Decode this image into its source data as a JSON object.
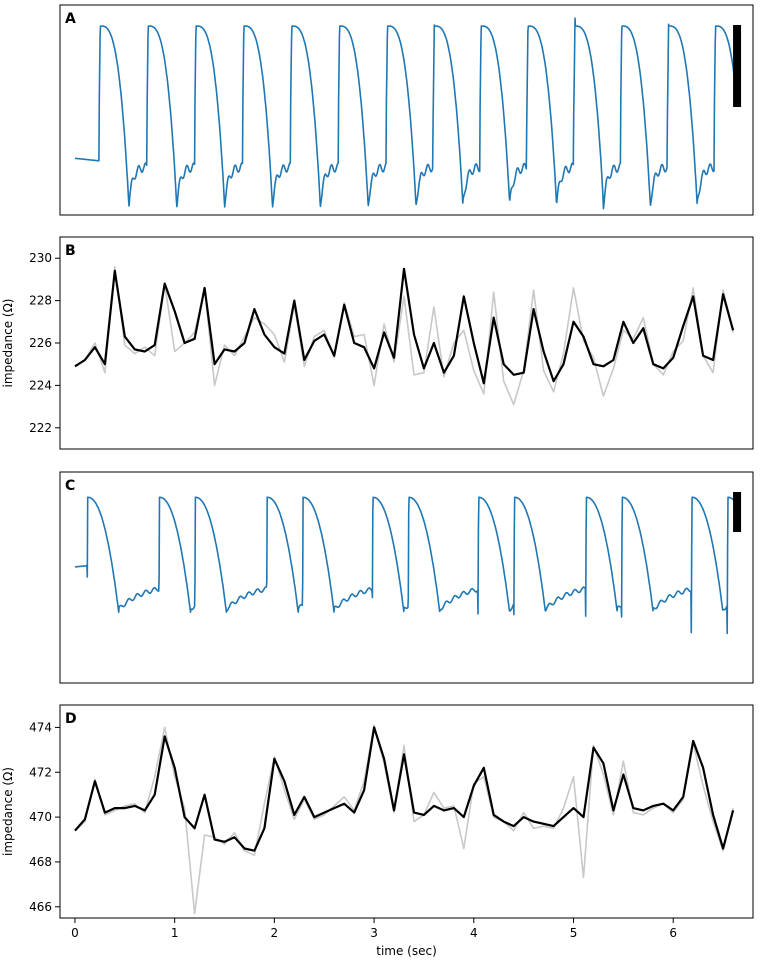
{
  "colors": {
    "blue": "#1f77b4",
    "black": "#000000",
    "gray": "#c8c8c8"
  },
  "shared_x": {
    "label": "time (sec)",
    "range": [
      -0.15,
      6.8
    ],
    "ticks": [
      0,
      1,
      2,
      3,
      4,
      5,
      6
    ]
  },
  "chart_data": [
    {
      "panel": "A",
      "type": "line",
      "ylim": [
        0,
        1
      ],
      "y_axis_visible": false,
      "series": [
        {
          "color": "blue",
          "kind": "action-potential",
          "beats": [
            0.24,
            0.72,
            1.2,
            1.68,
            2.16,
            2.64,
            3.12,
            3.59,
            4.06,
            4.53,
            5.0,
            5.47,
            5.94,
            6.41
          ],
          "notes": "optical action potential trace, arbitrary units"
        }
      ],
      "scale_bar": true
    },
    {
      "panel": "B",
      "type": "line",
      "ylabel": "impedance (Ω)",
      "ylim": [
        221.0,
        231.0
      ],
      "yticks": [
        222,
        224,
        226,
        228,
        230
      ],
      "series": [
        {
          "color": "gray",
          "role": "raw",
          "x": [
            0,
            0.1,
            0.2,
            0.3,
            0.4,
            0.5,
            0.6,
            0.7,
            0.8,
            0.9,
            1.0,
            1.1,
            1.2,
            1.3,
            1.4,
            1.5,
            1.6,
            1.7,
            1.8,
            1.9,
            2.0,
            2.1,
            2.2,
            2.3,
            2.4,
            2.5,
            2.6,
            2.7,
            2.8,
            2.9,
            3.0,
            3.1,
            3.2,
            3.3,
            3.4,
            3.5,
            3.6,
            3.7,
            3.8,
            3.9,
            4.0,
            4.1,
            4.2,
            4.3,
            4.4,
            4.5,
            4.6,
            4.7,
            4.8,
            4.9,
            5.0,
            5.1,
            5.2,
            5.3,
            5.4,
            5.5,
            5.6,
            5.7,
            5.8,
            5.9,
            6.0,
            6.1,
            6.2,
            6.3,
            6.4,
            6.5,
            6.6
          ],
          "y": [
            224.9,
            225.2,
            226.0,
            224.6,
            229.6,
            225.9,
            225.5,
            225.8,
            225.4,
            228.8,
            225.6,
            226.0,
            226.5,
            228.6,
            224.0,
            225.9,
            225.4,
            226.3,
            227.2,
            226.9,
            226.4,
            225.1,
            227.8,
            224.9,
            226.3,
            226.6,
            225.3,
            227.9,
            226.3,
            226.4,
            224.0,
            226.9,
            225.1,
            228.2,
            224.5,
            224.6,
            227.7,
            224.4,
            226.0,
            226.6,
            224.7,
            223.6,
            228.4,
            224.2,
            223.1,
            224.7,
            228.5,
            224.7,
            223.7,
            225.5,
            228.6,
            226.1,
            225.3,
            223.5,
            224.8,
            226.6,
            226.2,
            227.2,
            225.0,
            224.5,
            225.6,
            226.1,
            228.6,
            225.4,
            224.6,
            228.5,
            226.5
          ]
        },
        {
          "color": "black",
          "role": "filtered",
          "x": [
            0,
            0.1,
            0.2,
            0.3,
            0.4,
            0.5,
            0.6,
            0.7,
            0.8,
            0.9,
            1.0,
            1.1,
            1.2,
            1.3,
            1.4,
            1.5,
            1.6,
            1.7,
            1.8,
            1.9,
            2.0,
            2.1,
            2.2,
            2.3,
            2.4,
            2.5,
            2.6,
            2.7,
            2.8,
            2.9,
            3.0,
            3.1,
            3.2,
            3.3,
            3.4,
            3.5,
            3.6,
            3.7,
            3.8,
            3.9,
            4.0,
            4.1,
            4.2,
            4.3,
            4.4,
            4.5,
            4.6,
            4.7,
            4.8,
            4.9,
            5.0,
            5.1,
            5.2,
            5.3,
            5.4,
            5.5,
            5.6,
            5.7,
            5.8,
            5.9,
            6.0,
            6.1,
            6.2,
            6.3,
            6.4,
            6.5,
            6.6
          ],
          "y": [
            224.9,
            225.2,
            225.8,
            225.0,
            229.4,
            226.3,
            225.7,
            225.6,
            225.9,
            228.8,
            227.5,
            226.0,
            226.2,
            228.6,
            225.0,
            225.7,
            225.6,
            226.0,
            227.6,
            226.4,
            225.8,
            225.5,
            228.0,
            225.2,
            226.1,
            226.4,
            225.4,
            227.8,
            226.0,
            225.8,
            224.8,
            226.5,
            225.3,
            229.5,
            226.4,
            224.8,
            226.0,
            224.6,
            225.4,
            228.2,
            226.0,
            224.1,
            227.2,
            225.0,
            224.5,
            224.6,
            227.6,
            225.6,
            224.2,
            225.0,
            227.0,
            226.3,
            225.0,
            224.9,
            225.2,
            227.0,
            226.0,
            226.7,
            225.0,
            224.8,
            225.3,
            226.8,
            228.2,
            225.4,
            225.2,
            228.3,
            226.6
          ]
        }
      ]
    },
    {
      "panel": "C",
      "type": "line",
      "ylim": [
        0,
        1
      ],
      "y_axis_visible": false,
      "series": [
        {
          "color": "blue",
          "kind": "action-potential",
          "beats": [
            0.12,
            0.84,
            1.2,
            1.92,
            2.28,
            2.98,
            3.34,
            4.04,
            4.4,
            5.12,
            5.48,
            6.18,
            6.54
          ],
          "notes": "optical action potential trace, arbitrary units"
        }
      ],
      "scale_bar": true
    },
    {
      "panel": "D",
      "type": "line",
      "ylabel": "impedance (Ω)",
      "ylim": [
        465.5,
        475.0
      ],
      "yticks": [
        466,
        468,
        470,
        472,
        474
      ],
      "series": [
        {
          "color": "gray",
          "role": "raw",
          "x": [
            0,
            0.1,
            0.2,
            0.3,
            0.4,
            0.5,
            0.6,
            0.7,
            0.8,
            0.9,
            1.0,
            1.1,
            1.2,
            1.3,
            1.4,
            1.5,
            1.6,
            1.7,
            1.8,
            1.9,
            2.0,
            2.1,
            2.2,
            2.3,
            2.4,
            2.5,
            2.6,
            2.7,
            2.8,
            2.9,
            3.0,
            3.1,
            3.2,
            3.3,
            3.4,
            3.5,
            3.6,
            3.7,
            3.8,
            3.9,
            4.0,
            4.1,
            4.2,
            4.3,
            4.4,
            4.5,
            4.6,
            4.7,
            4.8,
            4.9,
            5.0,
            5.1,
            5.2,
            5.3,
            5.4,
            5.5,
            5.6,
            5.7,
            5.8,
            5.9,
            6.0,
            6.1,
            6.2,
            6.3,
            6.4,
            6.5,
            6.6
          ],
          "y": [
            469.4,
            469.8,
            471.7,
            470.1,
            470.3,
            470.5,
            470.6,
            470.2,
            471.8,
            474.0,
            471.8,
            470.4,
            465.7,
            469.2,
            469.1,
            468.8,
            469.3,
            468.5,
            468.3,
            470.6,
            472.7,
            471.2,
            469.9,
            470.8,
            469.9,
            470.1,
            470.5,
            470.9,
            470.3,
            471.6,
            474.1,
            472.4,
            470.2,
            473.2,
            469.8,
            470.1,
            471.1,
            470.4,
            470.5,
            468.6,
            471.5,
            471.8,
            470.0,
            469.8,
            469.4,
            470.2,
            469.5,
            469.6,
            469.5,
            470.4,
            471.8,
            467.3,
            473.2,
            471.9,
            470.1,
            472.5,
            470.2,
            470.1,
            470.4,
            470.6,
            470.2,
            470.8,
            473.3,
            471.4,
            469.8,
            468.5,
            470.4
          ]
        },
        {
          "color": "black",
          "role": "filtered",
          "x": [
            0,
            0.1,
            0.2,
            0.3,
            0.4,
            0.5,
            0.6,
            0.7,
            0.8,
            0.9,
            1.0,
            1.1,
            1.2,
            1.3,
            1.4,
            1.5,
            1.6,
            1.7,
            1.8,
            1.9,
            2.0,
            2.1,
            2.2,
            2.3,
            2.4,
            2.5,
            2.6,
            2.7,
            2.8,
            2.9,
            3.0,
            3.1,
            3.2,
            3.3,
            3.4,
            3.5,
            3.6,
            3.7,
            3.8,
            3.9,
            4.0,
            4.1,
            4.2,
            4.3,
            4.4,
            4.5,
            4.6,
            4.7,
            4.8,
            4.9,
            5.0,
            5.1,
            5.2,
            5.3,
            5.4,
            5.5,
            5.6,
            5.7,
            5.8,
            5.9,
            6.0,
            6.1,
            6.2,
            6.3,
            6.4,
            6.5,
            6.6
          ],
          "y": [
            469.4,
            469.9,
            471.6,
            470.2,
            470.4,
            470.4,
            470.5,
            470.3,
            471.0,
            473.6,
            472.2,
            470.0,
            469.5,
            471.0,
            469.0,
            468.9,
            469.1,
            468.6,
            468.5,
            469.5,
            472.6,
            471.6,
            470.1,
            470.9,
            470.0,
            470.2,
            470.4,
            470.6,
            470.2,
            471.2,
            474.0,
            472.6,
            470.3,
            472.8,
            470.2,
            470.1,
            470.5,
            470.3,
            470.4,
            470.0,
            471.4,
            472.2,
            470.1,
            469.8,
            469.6,
            470.0,
            469.8,
            469.7,
            469.6,
            470.0,
            470.4,
            470.0,
            473.1,
            472.4,
            470.3,
            471.9,
            470.4,
            470.3,
            470.5,
            470.6,
            470.3,
            470.9,
            473.4,
            472.2,
            470.1,
            468.6,
            470.3
          ]
        }
      ]
    }
  ]
}
